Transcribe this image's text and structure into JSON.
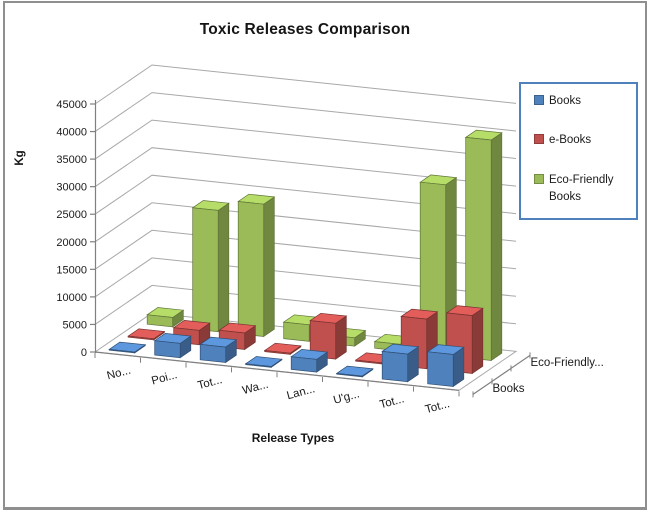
{
  "page": {
    "background": "#ffffff",
    "border_color": "#8f8f8f"
  },
  "chart_data": {
    "type": "bar",
    "variant": "3d-column",
    "title": "Toxic Releases Comparison",
    "xlabel": "Release Types",
    "ylabel": "Kg",
    "ylim": [
      0,
      45000
    ],
    "ytick_step": 5000,
    "yticks": [
      0,
      5000,
      10000,
      15000,
      20000,
      25000,
      30000,
      35000,
      40000,
      45000
    ],
    "grid": true,
    "categories": [
      "No...",
      "Poi...",
      "Tot...",
      "Wa...",
      "Lan...",
      "U'g...",
      "Tot...",
      "Tot..."
    ],
    "series": [
      {
        "name": "Books",
        "color": "#4F81BD",
        "values": [
          150,
          2600,
          2800,
          150,
          2300,
          150,
          5000,
          5800
        ]
      },
      {
        "name": "e-Books",
        "color": "#C0504D",
        "values": [
          200,
          2600,
          3000,
          200,
          6500,
          200,
          9000,
          10500
        ]
      },
      {
        "name": "Eco-Friendly Books",
        "color": "#9BBB59",
        "values": [
          1700,
          22000,
          24000,
          3000,
          1500,
          1200,
          31000,
          40000
        ]
      }
    ],
    "depth_axis_labels": [
      "Books",
      "Eco-Friendly..."
    ],
    "legend": {
      "position": "top-right",
      "border_color": "#4F81BD",
      "items": [
        "Books",
        "e-Books",
        "Eco-Friendly Books"
      ]
    },
    "colors": {
      "gridline": "#A8A8A8",
      "axis_line": "#808080",
      "tick_text": "#1a1a1a"
    }
  }
}
